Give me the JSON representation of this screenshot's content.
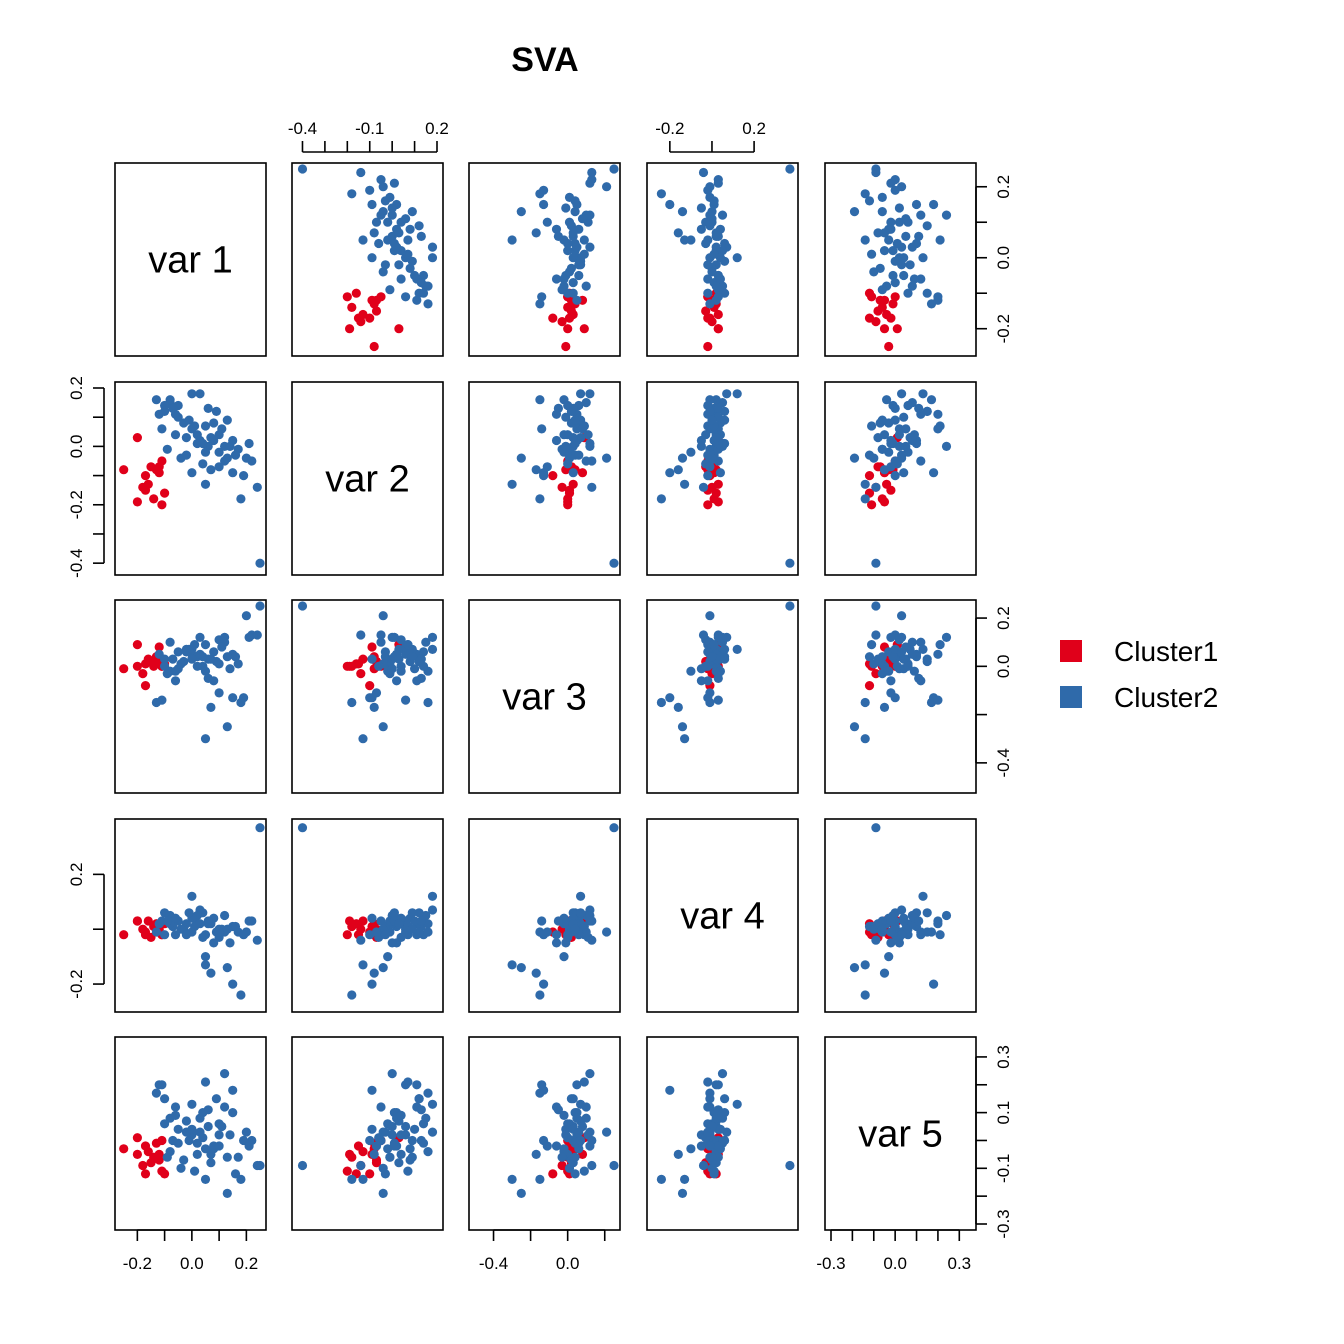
{
  "chart_data": {
    "type": "scatter",
    "subtype": "pairs",
    "title": "SVA",
    "variables": [
      "var 1",
      "var 2",
      "var 3",
      "var 4",
      "var 5"
    ],
    "ranges": {
      "var 1": [
        -0.26,
        0.25
      ],
      "var 2": [
        -0.42,
        0.2
      ],
      "var 3": [
        -0.5,
        0.25
      ],
      "var 4": [
        -0.28,
        0.38
      ],
      "var 5": [
        -0.3,
        0.35
      ]
    },
    "axes": {
      "var 1": {
        "ticks": [
          -0.2,
          -0.1,
          0.0,
          0.1,
          0.2
        ],
        "labels": [
          "-0.2",
          "0.0",
          "0.2"
        ]
      },
      "var 2": {
        "ticks": [
          -0.4,
          -0.3,
          -0.2,
          -0.1,
          0.0,
          0.1,
          0.2
        ],
        "labels": [
          "-0.4",
          "-0.1",
          "0.2"
        ],
        "left_labels": [
          "-0.4",
          "-0.2",
          "0.0",
          "0.2"
        ]
      },
      "var 3": {
        "ticks": [
          -0.4,
          -0.2,
          0.0,
          0.2
        ],
        "labels": [
          "-0.4",
          "0.0"
        ],
        "right_labels": [
          "-0.4",
          "0.0",
          "0.2"
        ]
      },
      "var 4": {
        "ticks": [
          -0.2,
          0.0,
          0.2
        ],
        "labels": [
          "-0.2",
          "0.2"
        ],
        "left_labels": [
          "-0.2",
          "0.2"
        ]
      },
      "var 5": {
        "ticks": [
          -0.3,
          -0.2,
          -0.1,
          0.0,
          0.1,
          0.2,
          0.3
        ],
        "labels": [
          "-0.3",
          "0.0",
          "0.3"
        ],
        "right_labels": [
          "-0.3",
          "-0.1",
          "0.1",
          "0.3"
        ]
      }
    },
    "legend": {
      "position": "right",
      "entries": [
        {
          "name": "Cluster1",
          "color": "#e0001a"
        },
        {
          "name": "Cluster2",
          "color": "#2f6aaa"
        }
      ]
    },
    "series": [
      {
        "name": "Cluster1",
        "color": "#e0001a",
        "points": [
          [
            -0.25,
            -0.08,
            -0.01,
            -0.02,
            -0.03
          ],
          [
            -0.2,
            -0.19,
            0.0,
            0.03,
            -0.05
          ],
          [
            -0.18,
            -0.14,
            -0.03,
            0.0,
            -0.09
          ],
          [
            -0.17,
            -0.15,
            0.01,
            -0.02,
            -0.02
          ],
          [
            -0.16,
            -0.13,
            0.03,
            0.03,
            -0.04
          ],
          [
            -0.15,
            -0.07,
            0.02,
            -0.03,
            -0.08
          ],
          [
            -0.14,
            -0.18,
            0.0,
            0.01,
            -0.06
          ],
          [
            -0.13,
            -0.08,
            0.04,
            0.02,
            -0.01
          ],
          [
            -0.12,
            -0.07,
            0.02,
            0.0,
            -0.07
          ],
          [
            -0.11,
            -0.2,
            0.0,
            -0.02,
            -0.11
          ],
          [
            -0.1,
            -0.16,
            0.01,
            0.02,
            -0.12
          ],
          [
            -0.2,
            0.03,
            0.09,
            0.03,
            0.01
          ],
          [
            -0.17,
            -0.1,
            -0.08,
            -0.01,
            -0.12
          ],
          [
            -0.12,
            -0.09,
            0.08,
            0.01,
            -0.05
          ],
          [
            -0.11,
            -0.05,
            0.0,
            -0.02,
            0.0
          ]
        ]
      },
      {
        "name": "Cluster2",
        "color": "#2f6aaa",
        "points": [
          [
            0.25,
            -0.4,
            0.25,
            0.37,
            -0.09
          ],
          [
            0.0,
            0.18,
            0.07,
            0.12,
            0.13
          ],
          [
            0.03,
            0.18,
            0.12,
            0.07,
            0.03
          ],
          [
            -0.05,
            0.14,
            0.06,
            0.03,
            -0.01
          ],
          [
            -0.08,
            0.15,
            0.1,
            0.05,
            0.08
          ],
          [
            -0.12,
            0.11,
            0.05,
            0.02,
            0.2
          ],
          [
            -0.1,
            0.12,
            0.03,
            0.06,
            0.15
          ],
          [
            0.05,
            0.07,
            0.09,
            -0.02,
            0.21
          ],
          [
            0.08,
            0.08,
            0.06,
            0.04,
            -0.03
          ],
          [
            0.1,
            0.04,
            0.11,
            -0.03,
            0.02
          ],
          [
            0.12,
            0.0,
            0.12,
            0.05,
            0.24
          ],
          [
            0.15,
            0.02,
            0.05,
            0.01,
            0.1
          ],
          [
            0.17,
            -0.01,
            0.01,
            -0.01,
            -0.06
          ],
          [
            0.2,
            -0.04,
            0.21,
            -0.01,
            0.03
          ],
          [
            0.22,
            -0.05,
            0.13,
            0.03,
            0.0
          ],
          [
            0.24,
            -0.14,
            0.13,
            -0.04,
            -0.09
          ],
          [
            0.18,
            -0.18,
            -0.15,
            -0.24,
            -0.14
          ],
          [
            0.15,
            -0.09,
            -0.13,
            -0.2,
            0.18
          ],
          [
            0.12,
            -0.05,
            0.1,
            -0.01,
            0.12
          ],
          [
            0.1,
            -0.02,
            0.01,
            0.0,
            0.06
          ],
          [
            0.08,
            0.02,
            -0.06,
            -0.05,
            -0.02
          ],
          [
            0.06,
            0.0,
            0.03,
            0.02,
            0.05
          ],
          [
            0.05,
            -0.02,
            -0.02,
            -0.1,
            -0.03
          ],
          [
            0.04,
            0.01,
            0.04,
            0.06,
            0.1
          ],
          [
            0.02,
            0.04,
            0.0,
            0.02,
            -0.05
          ],
          [
            0.0,
            0.06,
            0.05,
            -0.01,
            0.02
          ],
          [
            -0.02,
            0.03,
            0.07,
            0.02,
            0.07
          ],
          [
            -0.03,
            0.08,
            0.02,
            0.0,
            -0.07
          ],
          [
            -0.05,
            0.1,
            -0.01,
            0.03,
            0.04
          ],
          [
            -0.06,
            0.11,
            -0.06,
            -0.02,
            0.12
          ],
          [
            -0.07,
            0.13,
            0.03,
            0.01,
            0.0
          ],
          [
            -0.08,
            0.16,
            -0.02,
            0.02,
            -0.04
          ],
          [
            -0.1,
            0.14,
            0.0,
            -0.02,
            0.06
          ],
          [
            -0.13,
            0.16,
            -0.15,
            -0.01,
            0.17
          ],
          [
            -0.11,
            0.06,
            -0.14,
            0.03,
            0.2
          ],
          [
            0.07,
            -0.08,
            -0.17,
            -0.16,
            -0.05
          ],
          [
            0.05,
            -0.13,
            -0.3,
            -0.13,
            -0.14
          ],
          [
            0.02,
            0.01,
            0.04,
            0.05,
            -0.01
          ],
          [
            0.13,
            -0.04,
            -0.25,
            -0.14,
            -0.19
          ],
          [
            0.16,
            -0.03,
            0.04,
            0.01,
            -0.12
          ],
          [
            0.19,
            -0.1,
            -0.13,
            -0.02,
            0.0
          ],
          [
            -0.04,
            -0.04,
            0.01,
            0.0,
            -0.1
          ],
          [
            0.0,
            -0.09,
            0.03,
            0.04,
            0.04
          ],
          [
            0.03,
            0.02,
            0.05,
            0.02,
            0.08
          ],
          [
            -0.09,
            -0.01,
            -0.03,
            0.03,
            -0.06
          ],
          [
            0.11,
            0.06,
            0.08,
            0.0,
            0.05
          ],
          [
            0.14,
            0.0,
            -0.01,
            -0.05,
            0.02
          ],
          [
            0.21,
            0.01,
            0.12,
            0.03,
            -0.02
          ],
          [
            -0.01,
            0.09,
            0.07,
            0.06,
            0.0
          ],
          [
            0.09,
            0.12,
            0.02,
            -0.01,
            0.15
          ],
          [
            -0.06,
            0.04,
            -0.02,
            0.04,
            0.09
          ],
          [
            0.07,
            0.03,
            0.03,
            0.02,
            -0.08
          ],
          [
            0.04,
            -0.06,
            0.0,
            -0.03,
            0.01
          ],
          [
            0.01,
            0.07,
            0.09,
            0.01,
            -0.11
          ],
          [
            0.06,
            0.13,
            -0.05,
            0.03,
            0.11
          ],
          [
            -0.02,
            -0.03,
            0.06,
            -0.02,
            0.03
          ],
          [
            0.13,
            0.09,
            0.04,
            0.0,
            -0.06
          ],
          [
            0.1,
            -0.07,
            -0.11,
            -0.01,
            -0.02
          ]
        ]
      }
    ]
  }
}
